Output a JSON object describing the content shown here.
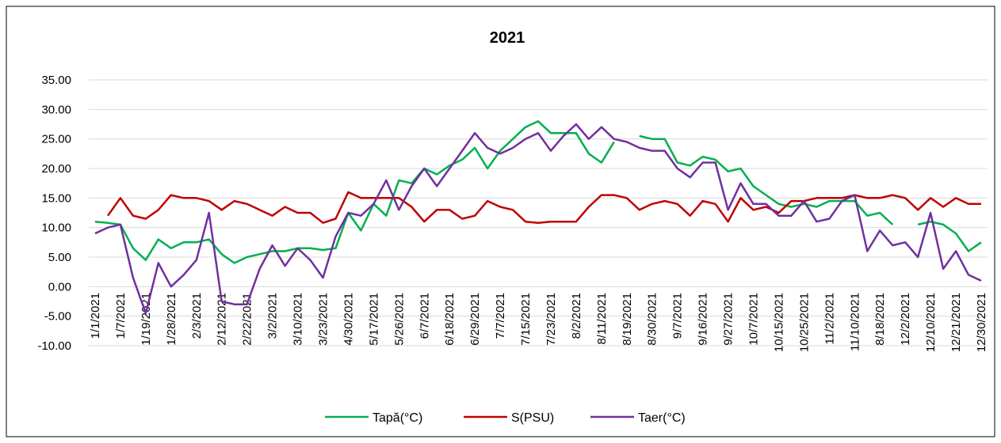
{
  "chart_data": {
    "type": "line",
    "title": "2021",
    "categories": [
      "1/1/2021",
      null,
      "1/7/2021",
      null,
      "1/19/2021",
      null,
      "1/28/2021",
      null,
      "2/3/2021",
      null,
      "2/12/2021",
      null,
      "2/22/2021",
      null,
      "3/2/2021",
      null,
      "3/10/2021",
      null,
      "3/23/2021",
      null,
      "4/30/2021",
      null,
      "5/17/2021",
      null,
      "5/26/2021",
      null,
      "6/7/2021",
      null,
      "6/18/2021",
      null,
      "6/29/2021",
      null,
      "7/7/2021",
      null,
      "7/15/2021",
      null,
      "7/23/2021",
      null,
      "8/2/2021",
      null,
      "8/11/2021",
      null,
      "8/19/2021",
      null,
      "8/30/2021",
      null,
      "9/7/2021",
      null,
      "9/16/2021",
      null,
      "9/27/2021",
      null,
      "10/7/2021",
      null,
      "10/15/2021",
      null,
      "10/25/2021",
      null,
      "11/2/2021",
      null,
      "11/10/2021",
      null,
      "8/18/2021",
      null,
      "12/2/2021",
      null,
      "12/10/2021",
      null,
      "12/21/2021",
      null,
      "12/30/2021"
    ],
    "series": [
      {
        "name": "Tapă(°C)",
        "color": "#00b050",
        "values": [
          11,
          10.8,
          10.5,
          6.5,
          4.5,
          8,
          6.5,
          7.5,
          7.5,
          8,
          5.5,
          4,
          5,
          5.5,
          6,
          6,
          6.5,
          6.5,
          6.2,
          6.5,
          12.5,
          9.5,
          14,
          12,
          18,
          17.5,
          20,
          19,
          20.5,
          21.5,
          23.5,
          20,
          23,
          25,
          27,
          28,
          26,
          26,
          26,
          22.5,
          21,
          24.5,
          null,
          25.5,
          25,
          25,
          21,
          20.5,
          22,
          21.5,
          19.5,
          20,
          17,
          15.5,
          14,
          13.5,
          14,
          13.5,
          14.5,
          14.5,
          14.5,
          12,
          12.5,
          10.5,
          null,
          10.5,
          11,
          10.5,
          9,
          6,
          7.5
        ]
      },
      {
        "name": "S(PSU)",
        "color": "#c00000",
        "values": [
          null,
          12,
          15,
          12,
          11.5,
          13,
          15.5,
          15,
          15,
          14.5,
          13,
          14.5,
          14,
          13,
          12,
          13.5,
          12.5,
          12.5,
          10.8,
          11.5,
          16,
          15,
          15,
          15,
          15,
          13.5,
          11,
          13,
          13,
          11.5,
          12,
          14.5,
          13.5,
          13,
          11,
          10.8,
          11,
          11,
          11,
          13.5,
          15.5,
          15.5,
          15,
          13,
          14,
          14.5,
          14,
          12,
          14.5,
          14,
          11,
          15,
          13,
          13.5,
          12.5,
          14.5,
          14.5,
          15,
          15,
          15,
          15.5,
          15,
          15,
          15.5,
          15,
          13,
          15,
          13.5,
          15,
          14,
          14
        ]
      },
      {
        "name": "Taer(°C)",
        "color": "#7030a0",
        "values": [
          9,
          10,
          10.5,
          1.5,
          -4.5,
          4,
          0,
          2,
          4.5,
          12.5,
          -2.5,
          -3,
          -3,
          3,
          7,
          3.5,
          6.5,
          4.5,
          1.5,
          8.5,
          12.5,
          12,
          14,
          18,
          13,
          17,
          20,
          17,
          20,
          23,
          26,
          23.5,
          22.5,
          23.5,
          25,
          26,
          23,
          25.5,
          27.5,
          25,
          27,
          25,
          24.5,
          23.5,
          23,
          23,
          20,
          18.5,
          21,
          21,
          13,
          17.5,
          14,
          14,
          12,
          12,
          14.5,
          11,
          11.5,
          14.5,
          15.5,
          6,
          9.5,
          7,
          7.5,
          5,
          12.5,
          3,
          6,
          2,
          1
        ]
      }
    ],
    "ylim": [
      -10,
      35
    ],
    "yticks": [
      {
        "value": -10,
        "label": "-10.00"
      },
      {
        "value": -5,
        "label": "-5.00"
      },
      {
        "value": 0,
        "label": "0.00"
      },
      {
        "value": 5,
        "label": "5.00"
      },
      {
        "value": 10,
        "label": "10.00"
      },
      {
        "value": 15,
        "label": "15.00"
      },
      {
        "value": 20,
        "label": "20.00"
      },
      {
        "value": 25,
        "label": "25.00"
      },
      {
        "value": 30,
        "label": "30.00"
      },
      {
        "value": 35,
        "label": "35.00"
      }
    ],
    "grid": true,
    "legend": "bottom"
  }
}
